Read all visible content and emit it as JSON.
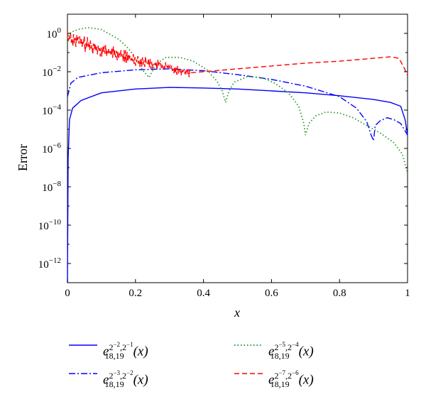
{
  "chart_data": {
    "type": "line",
    "ylabel": "Error",
    "xlabel": "x",
    "xlim": [
      0,
      1
    ],
    "ylim_log10": [
      -13,
      1
    ],
    "yscale": "log",
    "grid": false,
    "legend_placement": "below plot, two columns",
    "x_ticks": [
      "0",
      "0.2",
      "0.4",
      "0.6",
      "0.8",
      "1"
    ],
    "y_ticks": [
      {
        "base": "10",
        "exp": "0",
        "exp10": 0
      },
      {
        "base": "10",
        "exp": "−2",
        "exp10": -2
      },
      {
        "base": "10",
        "exp": "−4",
        "exp10": -4
      },
      {
        "base": "10",
        "exp": "−6",
        "exp10": -6
      },
      {
        "base": "10",
        "exp": "−8",
        "exp10": -8
      },
      {
        "base": "10",
        "exp": "−10",
        "exp10": -10
      },
      {
        "base": "10",
        "exp": "−12",
        "exp10": -12
      }
    ],
    "series": [
      {
        "name": "e_{18,19}^{2^-2,2^-1}(x)",
        "legend": {
          "e": "e",
          "sub": "18,19",
          "sup_a": "2",
          "sup_a_exp": "−2",
          "sup_b": "2",
          "sup_b_exp": "−1",
          "arg": "(x)"
        },
        "color": "#0000ff",
        "style": "solid",
        "log10_points": [
          [
            0.0,
            -14
          ],
          [
            0.002,
            -6.5
          ],
          [
            0.006,
            -4.5
          ],
          [
            0.015,
            -3.9
          ],
          [
            0.04,
            -3.5
          ],
          [
            0.1,
            -3.1
          ],
          [
            0.2,
            -2.9
          ],
          [
            0.3,
            -2.82
          ],
          [
            0.4,
            -2.85
          ],
          [
            0.5,
            -2.9
          ],
          [
            0.6,
            -3.0
          ],
          [
            0.7,
            -3.1
          ],
          [
            0.8,
            -3.25
          ],
          [
            0.9,
            -3.45
          ],
          [
            0.95,
            -3.6
          ],
          [
            0.98,
            -3.8
          ],
          [
            0.993,
            -4.5
          ],
          [
            1.0,
            -5.3
          ]
        ]
      },
      {
        "name": "e_{18,19}^{2^-3,2^-2}(x)",
        "legend": {
          "e": "e",
          "sub": "18,19",
          "sup_a": "2",
          "sup_a_exp": "−3",
          "sup_b": "2",
          "sup_b_exp": "−2",
          "arg": "(x)"
        },
        "color": "#0000ff",
        "style": "dashdot",
        "log10_points": [
          [
            0.0,
            -3.3
          ],
          [
            0.01,
            -2.6
          ],
          [
            0.03,
            -2.3
          ],
          [
            0.1,
            -2.05
          ],
          [
            0.2,
            -1.9
          ],
          [
            0.3,
            -1.85
          ],
          [
            0.4,
            -1.95
          ],
          [
            0.5,
            -2.15
          ],
          [
            0.6,
            -2.4
          ],
          [
            0.7,
            -2.75
          ],
          [
            0.8,
            -3.3
          ],
          [
            0.85,
            -3.9
          ],
          [
            0.88,
            -4.6
          ],
          [
            0.893,
            -5.3
          ],
          [
            0.9,
            -5.6
          ],
          [
            0.905,
            -4.8
          ],
          [
            0.92,
            -4.55
          ],
          [
            0.94,
            -4.4
          ],
          [
            0.96,
            -4.5
          ],
          [
            0.98,
            -4.7
          ],
          [
            0.99,
            -5.0
          ],
          [
            1.0,
            -5.3
          ]
        ]
      },
      {
        "name": "e_{18,19}^{2^-5,2^-4}(x)",
        "legend": {
          "e": "e",
          "sub": "18,19",
          "sup_a": "2",
          "sup_a_exp": "−5",
          "sup_b": "2",
          "sup_b_exp": "−4",
          "arg": "(x)"
        },
        "color": "#2a9a2a",
        "style": "dotted",
        "log10_points": [
          [
            0.0,
            -0.3
          ],
          [
            0.01,
            0.05
          ],
          [
            0.03,
            0.2
          ],
          [
            0.06,
            0.3
          ],
          [
            0.1,
            0.2
          ],
          [
            0.15,
            -0.3
          ],
          [
            0.18,
            -0.8
          ],
          [
            0.2,
            -1.3
          ],
          [
            0.22,
            -1.9
          ],
          [
            0.24,
            -2.3
          ],
          [
            0.26,
            -1.6
          ],
          [
            0.29,
            -1.25
          ],
          [
            0.33,
            -1.25
          ],
          [
            0.37,
            -1.45
          ],
          [
            0.41,
            -1.9
          ],
          [
            0.44,
            -2.5
          ],
          [
            0.455,
            -3.0
          ],
          [
            0.465,
            -3.6
          ],
          [
            0.475,
            -3.0
          ],
          [
            0.49,
            -2.55
          ],
          [
            0.53,
            -2.25
          ],
          [
            0.57,
            -2.3
          ],
          [
            0.61,
            -2.6
          ],
          [
            0.65,
            -3.1
          ],
          [
            0.68,
            -3.8
          ],
          [
            0.695,
            -4.7
          ],
          [
            0.7,
            -5.3
          ],
          [
            0.71,
            -4.7
          ],
          [
            0.73,
            -4.3
          ],
          [
            0.76,
            -4.1
          ],
          [
            0.8,
            -4.15
          ],
          [
            0.84,
            -4.4
          ],
          [
            0.88,
            -4.8
          ],
          [
            0.92,
            -5.2
          ],
          [
            0.96,
            -5.7
          ],
          [
            0.985,
            -6.3
          ],
          [
            1.0,
            -7.3
          ]
        ]
      },
      {
        "name": "e_{18,19}^{2^-7,2^-6}(x)",
        "legend": {
          "e": "e",
          "sub": "18,19",
          "sup_a": "2",
          "sup_a_exp": "−7",
          "sup_b": "2",
          "sup_b_exp": "−6",
          "arg": "(x)"
        },
        "color": "#ff0000",
        "style": "dashed",
        "noisy_segment": {
          "x0": 0.0,
          "x1": 0.36,
          "start_log10": -0.1,
          "end_log10": -2.05,
          "amplitude": 0.45
        },
        "log10_points": [
          [
            0.36,
            -2.05
          ],
          [
            0.4,
            -2.0
          ],
          [
            0.5,
            -1.85
          ],
          [
            0.6,
            -1.7
          ],
          [
            0.7,
            -1.55
          ],
          [
            0.8,
            -1.45
          ],
          [
            0.9,
            -1.3
          ],
          [
            0.95,
            -1.22
          ],
          [
            0.975,
            -1.3
          ],
          [
            0.99,
            -1.8
          ],
          [
            1.0,
            -2.2
          ]
        ]
      }
    ]
  }
}
